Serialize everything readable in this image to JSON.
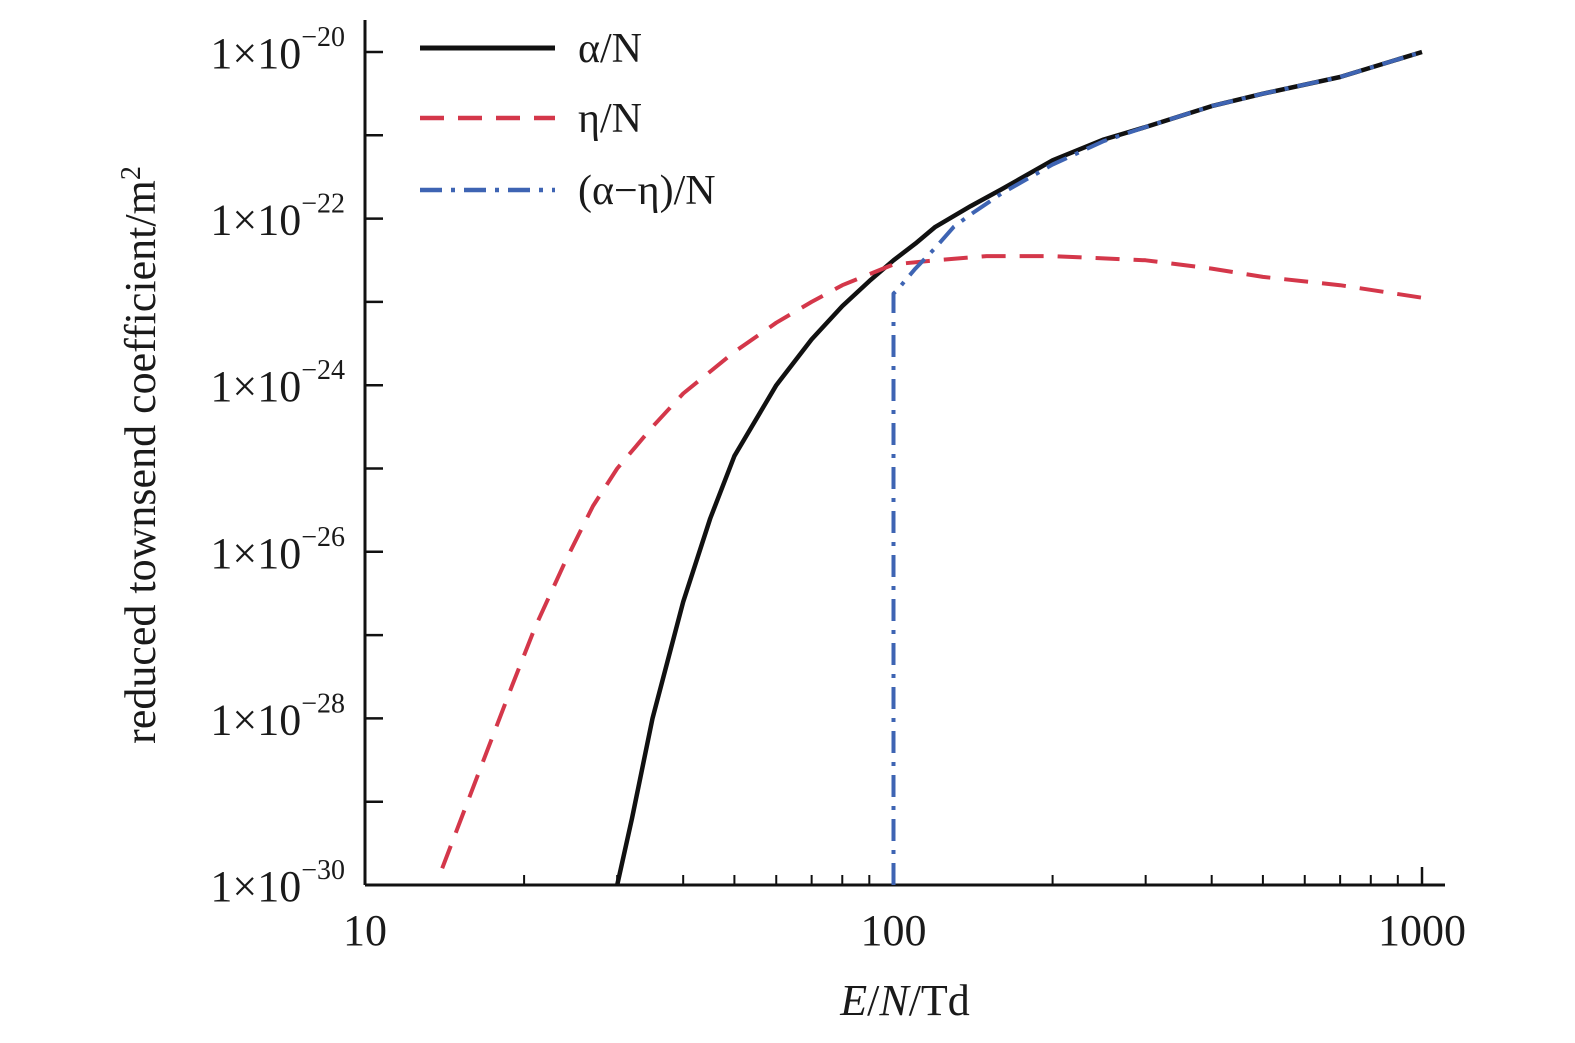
{
  "chart_data": {
    "type": "line",
    "xlabel_parts": [
      "E",
      "/",
      "N",
      "/Td"
    ],
    "ylabel": "reduced townsend coefficient/m",
    "ylabel_sup": "2",
    "x_scale": "log",
    "y_scale": "log",
    "xlim": [
      10,
      1000
    ],
    "ylim_exponent": [
      -30,
      -20
    ],
    "x_ticks": [
      10,
      100,
      1000
    ],
    "x_tick_labels": [
      "10",
      "100",
      "1000"
    ],
    "y_ticks": [
      -30,
      -28,
      -26,
      -24,
      -22,
      -20
    ],
    "y_tick_base": "1×10",
    "y_tick_exponents": [
      "−30",
      "−28",
      "−26",
      "−24",
      "−22",
      "−20"
    ],
    "grid": false,
    "legend_position": "top-left",
    "series": [
      {
        "name": "α/N",
        "style": "solid",
        "color": "#111111",
        "x": [
          30,
          32,
          35,
          40,
          45,
          50,
          60,
          70,
          80,
          90,
          100,
          110,
          120,
          140,
          160,
          200,
          250,
          300,
          400,
          500,
          700,
          1000
        ],
        "log10_y": [
          -30.0,
          -29.2,
          -28.0,
          -26.6,
          -25.6,
          -24.85,
          -24.0,
          -23.45,
          -23.05,
          -22.75,
          -22.5,
          -22.3,
          -22.1,
          -21.85,
          -21.65,
          -21.3,
          -21.05,
          -20.9,
          -20.65,
          -20.5,
          -20.3,
          -20.0
        ]
      },
      {
        "name": "η/N",
        "style": "dashed",
        "color": "#d4374a",
        "x": [
          14,
          15,
          17,
          19,
          21,
          24,
          27,
          30,
          35,
          40,
          50,
          60,
          70,
          80,
          100,
          120,
          150,
          200,
          300,
          400,
          500,
          700,
          1000
        ],
        "log10_y": [
          -29.8,
          -29.3,
          -28.4,
          -27.6,
          -26.9,
          -26.1,
          -25.45,
          -25.0,
          -24.5,
          -24.1,
          -23.6,
          -23.25,
          -23.0,
          -22.8,
          -22.55,
          -22.5,
          -22.45,
          -22.45,
          -22.5,
          -22.6,
          -22.7,
          -22.8,
          -22.95
        ]
      },
      {
        "name": "(α−η)/N",
        "style": "dashdot",
        "color": "#3e64b3",
        "x": [
          100,
          100,
          100,
          102,
          105,
          110,
          120,
          130,
          140,
          160,
          200,
          250,
          300,
          400,
          500,
          700,
          1000
        ],
        "log10_y": [
          -30.0,
          -24.0,
          -22.9,
          -22.85,
          -22.75,
          -22.6,
          -22.35,
          -22.1,
          -21.95,
          -21.7,
          -21.35,
          -21.07,
          -20.9,
          -20.65,
          -20.5,
          -20.3,
          -20.0
        ]
      }
    ]
  }
}
